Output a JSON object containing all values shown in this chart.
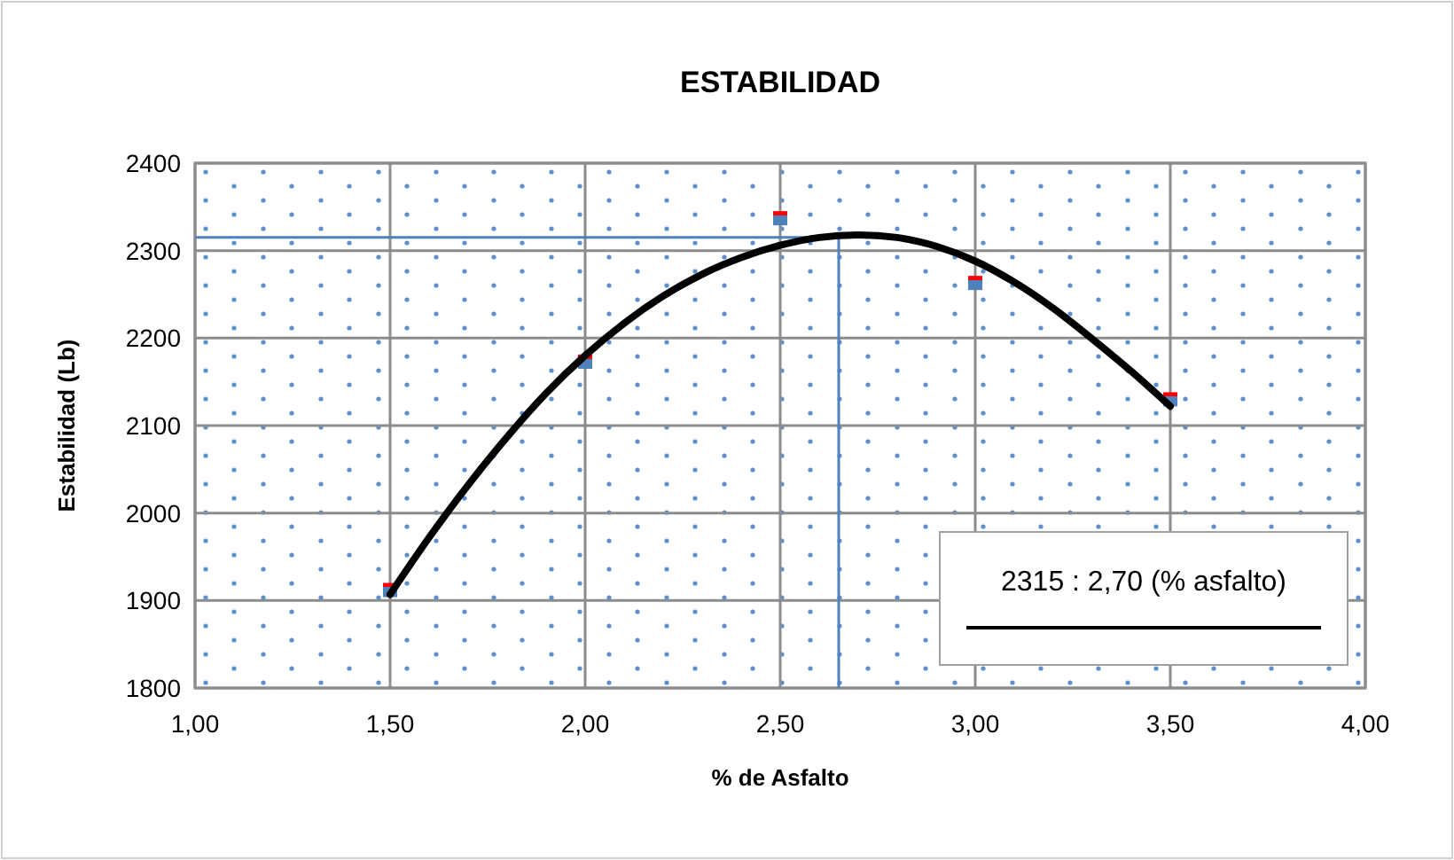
{
  "chart_data": {
    "type": "scatter",
    "title": "ESTABILIDAD",
    "xlabel": "% de Asfalto",
    "ylabel": "Estabilidad (Lb)",
    "xlim": [
      1,
      4
    ],
    "xticks": [
      {
        "value": 1,
        "label": "1,00"
      },
      {
        "value": 1.5,
        "label": "1,50"
      },
      {
        "value": 2,
        "label": "2,00"
      },
      {
        "value": 2.5,
        "label": "2,50"
      },
      {
        "value": 3,
        "label": "3,00"
      },
      {
        "value": 3.5,
        "label": "3,50"
      },
      {
        "value": 4,
        "label": "4,00"
      }
    ],
    "ylim": [
      1800,
      2400
    ],
    "yticks": [
      1800,
      1900,
      2000,
      2100,
      2200,
      2300,
      2400
    ],
    "grid": true,
    "legend": "bottom right",
    "series": [
      {
        "marker": "square",
        "color": "#4f81bd",
        "x": [
          1.5,
          2,
          2.5,
          3,
          3.5
        ],
        "values": [
          1912,
          2173,
          2337,
          2263,
          2130
        ]
      },
      {
        "type": "line",
        "marker": "none",
        "name": "2315 : 2,70  (% asfalto)",
        "color": "#000000",
        "x": [
          1.5,
          1.6,
          1.7,
          1.8,
          1.9,
          2,
          2.1,
          2.2,
          2.3,
          2.4,
          2.5,
          2.6,
          2.7,
          2.8,
          2.9,
          3,
          3.1,
          3.2,
          3.3,
          3.4,
          3.5
        ],
        "values": [
          1907,
          1972,
          2032,
          2087,
          2137,
          2180,
          2217,
          2248,
          2273,
          2292,
          2306,
          2315,
          2318,
          2315,
          2305,
          2288,
          2264,
          2234,
          2199,
          2162,
          2122
        ]
      }
    ],
    "ref_lines": [
      {
        "axis": "y",
        "value": 2315,
        "color": "#4f81bd"
      },
      {
        "axis": "x",
        "value": 2.65,
        "color": "#4f81bd"
      }
    ]
  }
}
